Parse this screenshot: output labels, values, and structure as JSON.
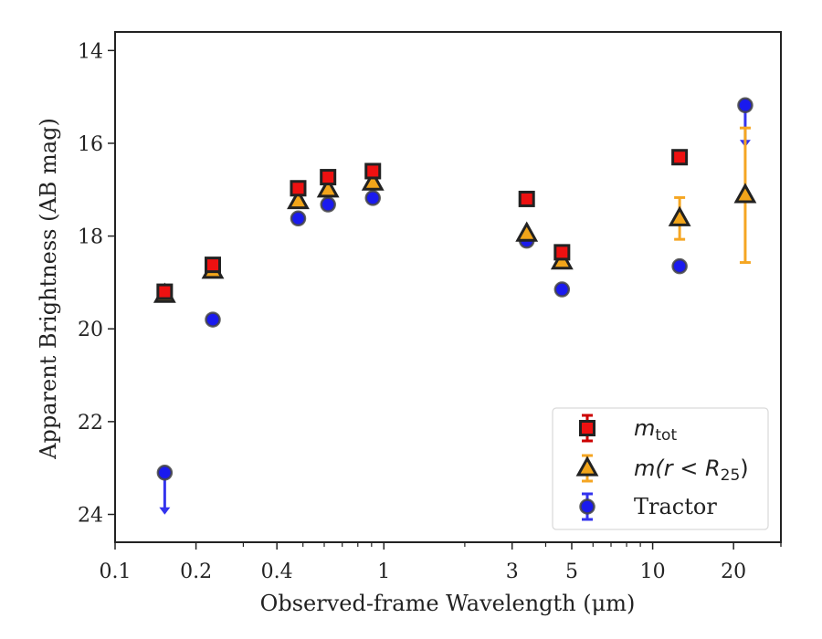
{
  "chart_data": {
    "type": "scatter",
    "title": "",
    "xlabel": "Observed-frame Wavelength (μm)",
    "ylabel": "Apparent Brightness (AB mag)",
    "xscale": "log",
    "xlim": [
      0.1,
      30
    ],
    "ylim": [
      24.6,
      13.6
    ],
    "y_inverted": true,
    "x_ticks": [
      {
        "value": 0.1,
        "label": "0.1"
      },
      {
        "value": 0.2,
        "label": "0.2"
      },
      {
        "value": 0.4,
        "label": "0.4"
      },
      {
        "value": 1,
        "label": "1"
      },
      {
        "value": 3,
        "label": "3"
      },
      {
        "value": 5,
        "label": "5"
      },
      {
        "value": 10,
        "label": "10"
      },
      {
        "value": 20,
        "label": "20"
      }
    ],
    "y_ticks": [
      {
        "value": 14,
        "label": "14"
      },
      {
        "value": 16,
        "label": "16"
      },
      {
        "value": 18,
        "label": "18"
      },
      {
        "value": 20,
        "label": "20"
      },
      {
        "value": 22,
        "label": "22"
      },
      {
        "value": 24,
        "label": "24"
      }
    ],
    "grid": false,
    "legend_position": "lower-right",
    "series": [
      {
        "name": "m_tot",
        "legend_main": "m",
        "legend_sub": "tot",
        "marker": "square",
        "color": "#ee1111",
        "error_color": "#cc0000",
        "points": [
          {
            "x": 0.153,
            "y": 19.2
          },
          {
            "x": 0.231,
            "y": 18.62
          },
          {
            "x": 0.48,
            "y": 16.97
          },
          {
            "x": 0.62,
            "y": 16.73
          },
          {
            "x": 0.91,
            "y": 16.6
          },
          {
            "x": 3.4,
            "y": 17.2
          },
          {
            "x": 4.6,
            "y": 18.35
          },
          {
            "x": 12.6,
            "y": 16.3
          }
        ]
      },
      {
        "name": "m(r < R25)",
        "legend_main": "m(r < R",
        "legend_sub": "25",
        "legend_tail": ")",
        "marker": "triangle",
        "color": "#f2a51a",
        "error_color": "#f5a623",
        "points": [
          {
            "x": 0.153,
            "y": 19.27
          },
          {
            "x": 0.231,
            "y": 18.75
          },
          {
            "x": 0.48,
            "y": 17.25
          },
          {
            "x": 0.62,
            "y": 17.0
          },
          {
            "x": 0.91,
            "y": 16.85
          },
          {
            "x": 3.4,
            "y": 17.95
          },
          {
            "x": 4.6,
            "y": 18.55
          },
          {
            "x": 12.6,
            "y": 17.62,
            "err_low": 0.45,
            "err_high": 0.45
          },
          {
            "x": 22.1,
            "y": 17.12,
            "err_low": 1.45,
            "err_high": 1.45
          }
        ]
      },
      {
        "name": "Tractor",
        "legend_main": "Tractor",
        "marker": "circle",
        "color": "#1a1aee",
        "error_color": "#3333ee",
        "points": [
          {
            "x": 0.153,
            "y": 23.1,
            "upper_limit": true
          },
          {
            "x": 0.231,
            "y": 19.8
          },
          {
            "x": 0.48,
            "y": 17.62
          },
          {
            "x": 0.62,
            "y": 17.32
          },
          {
            "x": 0.91,
            "y": 17.18
          },
          {
            "x": 3.4,
            "y": 18.1
          },
          {
            "x": 4.6,
            "y": 19.15
          },
          {
            "x": 12.6,
            "y": 18.65
          },
          {
            "x": 22.1,
            "y": 15.18,
            "upper_limit": true
          }
        ]
      }
    ]
  }
}
